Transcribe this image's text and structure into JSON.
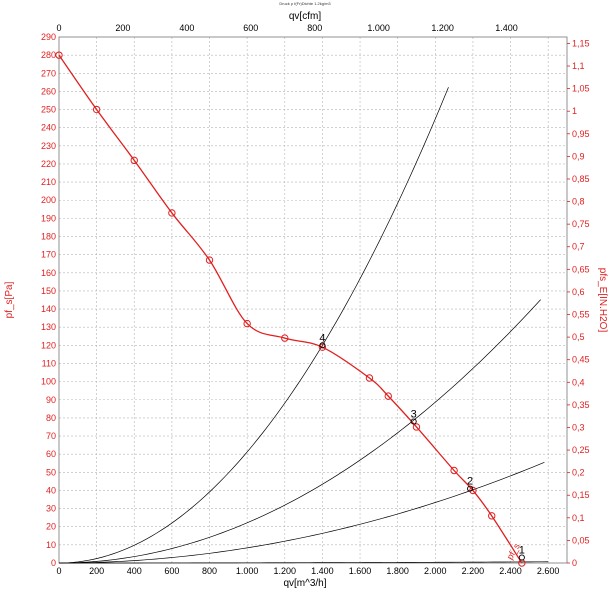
{
  "chart_data": {
    "type": "line",
    "title": "Druck p f(Fr)Dichte 1.2kg/m3",
    "xlabel": "qv[m^3/h]",
    "ylabel": "pf_s[Pa]",
    "x2label": "qv[cfm]",
    "y2label": "pfs_E[IN.H2O]",
    "xlim": [
      0,
      2700
    ],
    "ylim": [
      0,
      290
    ],
    "x_ticks": [
      0,
      200,
      400,
      600,
      800,
      1000,
      1200,
      1400,
      1600,
      1800,
      2000,
      2200,
      2400,
      2600
    ],
    "x_tick_labels": [
      "0",
      "200",
      "400",
      "600",
      "800",
      "1.000",
      "1.200",
      "1.400",
      "1.600",
      "1.800",
      "2.000",
      "2.200",
      "2.400",
      "2.600"
    ],
    "y_ticks": [
      0,
      10,
      20,
      30,
      40,
      50,
      60,
      70,
      80,
      90,
      100,
      110,
      120,
      130,
      140,
      150,
      160,
      170,
      180,
      190,
      200,
      210,
      220,
      230,
      240,
      250,
      260,
      270,
      280,
      290
    ],
    "x2_ticks": [
      0,
      200,
      400,
      600,
      800,
      1000,
      1200,
      1400
    ],
    "x2_tick_labels": [
      "0",
      "200",
      "400",
      "600",
      "800",
      "1.000",
      "1.200",
      "1.400"
    ],
    "y2_ticks": [
      0,
      0.05,
      0.1,
      0.15,
      0.2,
      0.25,
      0.3,
      0.35,
      0.4,
      0.45,
      0.5,
      0.55,
      0.6,
      0.65,
      0.7,
      0.75,
      0.8,
      0.85,
      0.9,
      0.95,
      1.0,
      1.05,
      1.1,
      1.15
    ],
    "y2_tick_labels": [
      "0",
      "0,05",
      "0,1",
      "0,15",
      "0,2",
      "0,25",
      "0,3",
      "0,35",
      "0,4",
      "0,45",
      "0,5",
      "0,55",
      "0,6",
      "0,65",
      "0,7",
      "0,75",
      "0,8",
      "0,85",
      "0,9",
      "0,95",
      "1",
      "1,05",
      "1,1",
      "1,15"
    ],
    "grid": true,
    "series": [
      {
        "label": "pf_s",
        "color": "#e02020",
        "x": [
          0,
          200,
          400,
          600,
          800,
          1000,
          1200,
          1400,
          1650,
          1750,
          1900,
          2100,
          2200,
          2300,
          2460
        ],
        "y": [
          280,
          250,
          222,
          193,
          167,
          132,
          124,
          119,
          102,
          92,
          75,
          51,
          40,
          26,
          0
        ],
        "markers": true
      }
    ],
    "system_curves": [
      {
        "label": "4",
        "k": 6.122e-05,
        "x_end": 2070,
        "color": "#000000"
      },
      {
        "label": "3",
        "k": 2.216e-05,
        "x_end": 2560,
        "color": "#000000"
      },
      {
        "label": "2",
        "k": 8.34e-06,
        "x_end": 2580,
        "color": "#000000"
      },
      {
        "label": "1",
        "k": 1e-07,
        "x_end": 2600,
        "color": "#000000"
      }
    ],
    "operating_points": [
      {
        "label": "4",
        "x": 1400,
        "y": 120
      },
      {
        "label": "3",
        "x": 1885,
        "y": 78
      },
      {
        "label": "2",
        "x": 2185,
        "y": 41
      },
      {
        "label": "1",
        "x": 2460,
        "y": 3
      }
    ],
    "curve_end_label": "pf_s"
  }
}
